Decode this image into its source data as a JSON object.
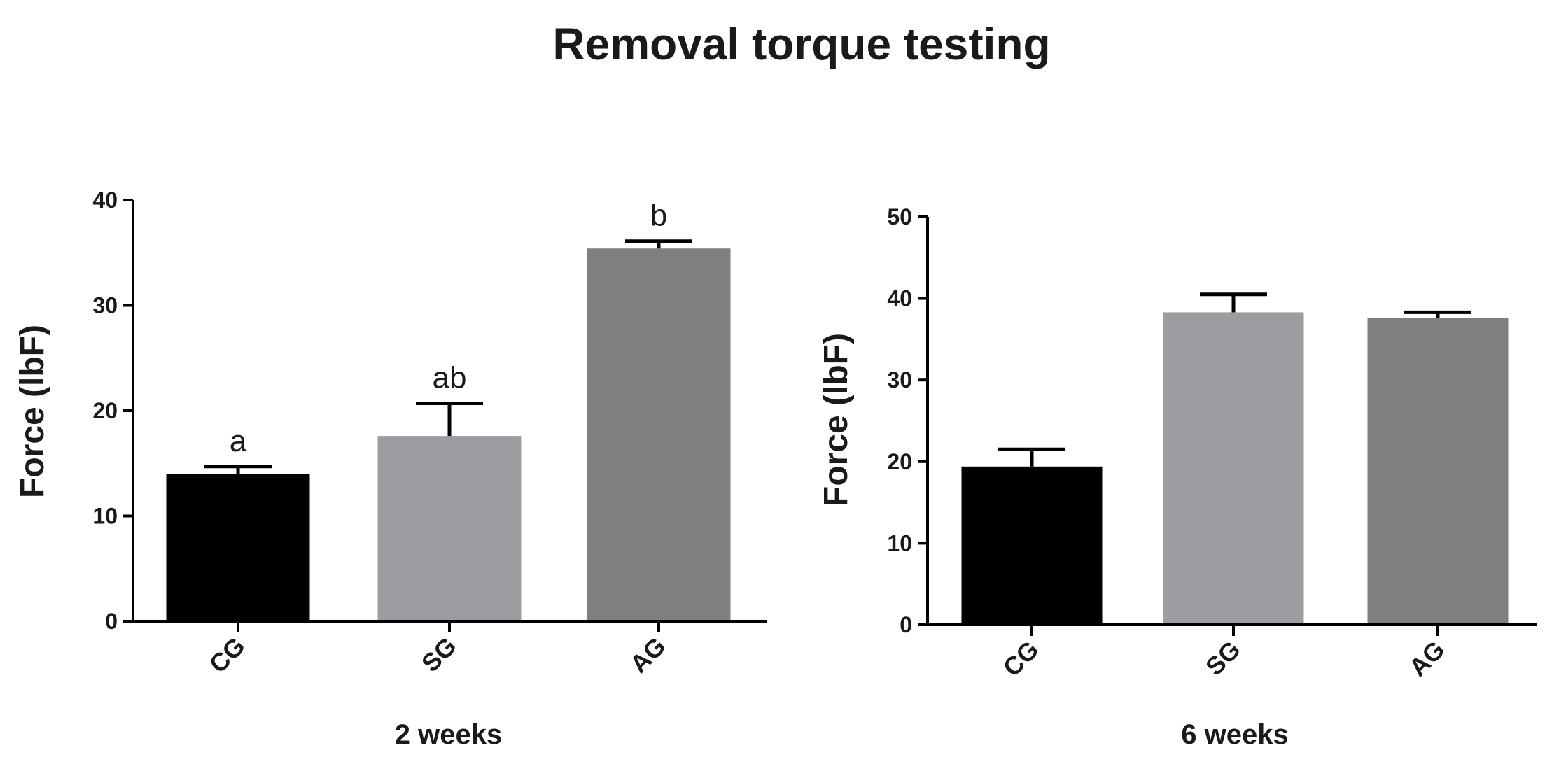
{
  "figure": {
    "title": "Removal torque testing"
  },
  "chart_data": [
    {
      "type": "bar",
      "title": "",
      "xlabel": "2 weeks",
      "ylabel": "Force (lbF)",
      "categories": [
        "CG",
        "SG",
        "AG"
      ],
      "values": [
        14,
        17.6,
        35.4
      ],
      "error_plus": [
        0.7,
        3.1,
        0.7
      ],
      "significance_labels": [
        "a",
        "ab",
        "b"
      ],
      "ylim": [
        0,
        40
      ],
      "yticks": [
        "0",
        "10",
        "20",
        "30",
        "40"
      ],
      "colors": [
        "#000000",
        "#9d9ca1",
        "#7f7f7f"
      ],
      "grid": false
    },
    {
      "type": "bar",
      "title": "",
      "xlabel": "6 weeks",
      "ylabel": "Force (lbF)",
      "categories": [
        "CG",
        "SG",
        "AG"
      ],
      "values": [
        19.4,
        38.3,
        37.6
      ],
      "error_plus": [
        2.1,
        2.2,
        0.7
      ],
      "significance_labels": [
        "",
        "",
        ""
      ],
      "ylim": [
        0,
        50
      ],
      "yticks": [
        "0",
        "10",
        "20",
        "30",
        "40",
        "50"
      ],
      "colors": [
        "#000000",
        "#9d9ca1",
        "#7f7f7f"
      ],
      "grid": false
    }
  ]
}
